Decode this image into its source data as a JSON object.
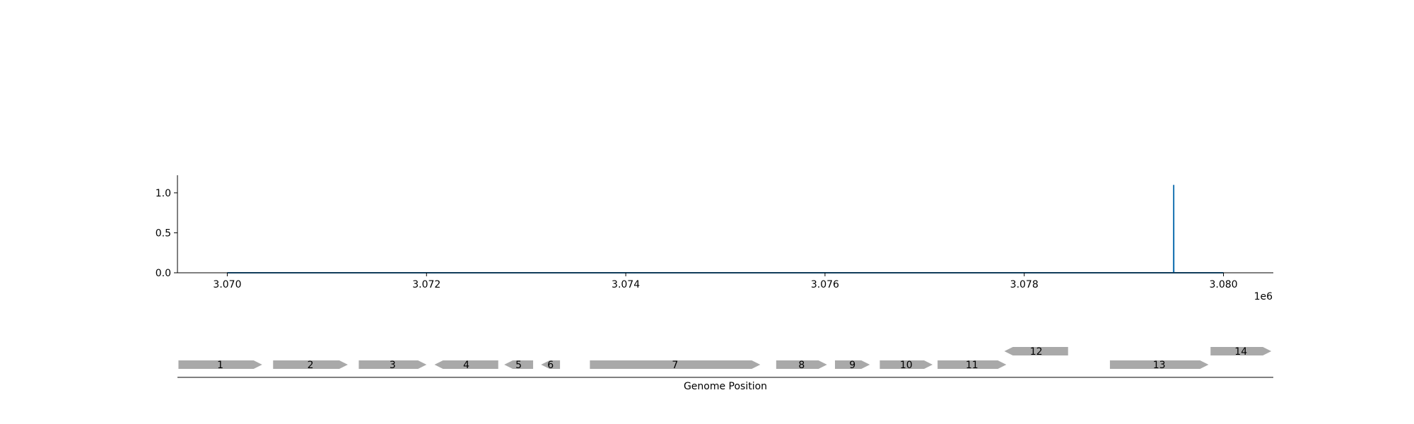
{
  "chart_data": [
    {
      "type": "line",
      "title": "",
      "xlabel": "",
      "ylabel": "",
      "x_offset_label": "1e6",
      "xlim": [
        3069500,
        3080500
      ],
      "ylim": [
        0,
        1.22
      ],
      "x_ticks": [
        3070000,
        3072000,
        3074000,
        3076000,
        3078000,
        3080000
      ],
      "x_tick_labels": [
        "3.070",
        "3.072",
        "3.074",
        "3.076",
        "3.078",
        "3.080"
      ],
      "y_ticks": [
        0,
        0.5,
        1.0
      ],
      "y_tick_labels": [
        "0.0",
        "0.5",
        "1.0"
      ],
      "grid": false,
      "series": [
        {
          "color": "#1f77b4",
          "x": [
            3070000,
            3079499,
            3079500,
            3079501,
            3080000
          ],
          "y": [
            0,
            0,
            1.1,
            0,
            0
          ]
        }
      ]
    },
    {
      "type": "gene-track",
      "xlabel": "Genome Position",
      "xlim": [
        3069500,
        3080500
      ],
      "feature_color": "#a9a9a9",
      "genes": [
        {
          "label": "1",
          "start": 3069510,
          "end": 3070350,
          "strand": "+",
          "lane": 0
        },
        {
          "label": "2",
          "start": 3070460,
          "end": 3071210,
          "strand": "+",
          "lane": 0
        },
        {
          "label": "3",
          "start": 3071320,
          "end": 3072000,
          "strand": "+",
          "lane": 0
        },
        {
          "label": "4",
          "start": 3072080,
          "end": 3072720,
          "strand": "-",
          "lane": 0
        },
        {
          "label": "5",
          "start": 3072780,
          "end": 3073070,
          "strand": "-",
          "lane": 0
        },
        {
          "label": "6",
          "start": 3073150,
          "end": 3073340,
          "strand": "-",
          "lane": 0
        },
        {
          "label": "7",
          "start": 3073640,
          "end": 3075350,
          "strand": "+",
          "lane": 0
        },
        {
          "label": "8",
          "start": 3075510,
          "end": 3076020,
          "strand": "+",
          "lane": 0
        },
        {
          "label": "9",
          "start": 3076100,
          "end": 3076450,
          "strand": "+",
          "lane": 0
        },
        {
          "label": "10",
          "start": 3076550,
          "end": 3077080,
          "strand": "+",
          "lane": 0
        },
        {
          "label": "11",
          "start": 3077130,
          "end": 3077820,
          "strand": "+",
          "lane": 0
        },
        {
          "label": "12",
          "start": 3077800,
          "end": 3078440,
          "strand": "-",
          "lane": 1
        },
        {
          "label": "13",
          "start": 3078860,
          "end": 3079850,
          "strand": "+",
          "lane": 0
        },
        {
          "label": "14",
          "start": 3079870,
          "end": 3080480,
          "strand": "+",
          "lane": 1
        }
      ]
    }
  ]
}
